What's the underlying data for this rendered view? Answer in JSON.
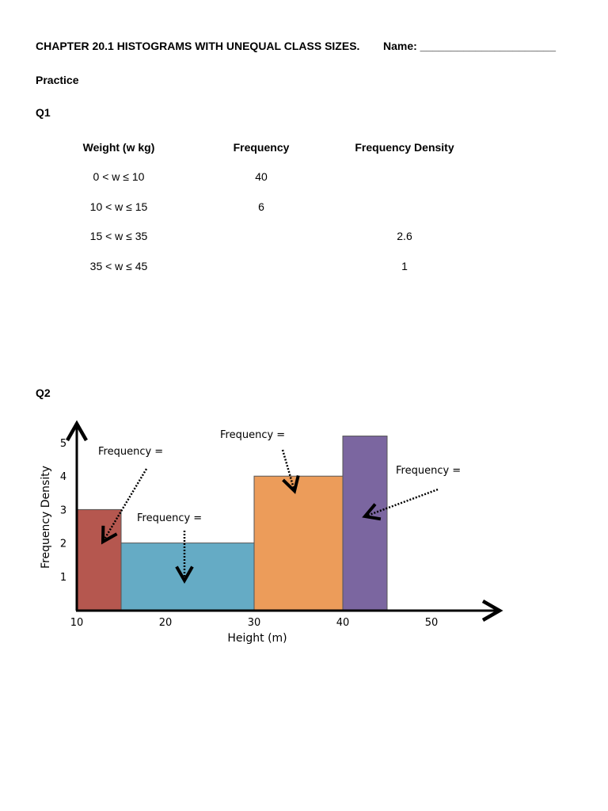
{
  "header": {
    "title": "CHAPTER 20.1 HISTOGRAMS WITH UNEQUAL CLASS SIZES.",
    "name_label": "Name: ______________________"
  },
  "section": "Practice",
  "q1": {
    "label": "Q1",
    "columns": [
      "Weight (w kg)",
      "Frequency",
      "Frequency Density"
    ],
    "rows": [
      [
        "0 < w ≤ 10",
        "40",
        ""
      ],
      [
        "10 < w ≤ 15",
        "6",
        ""
      ],
      [
        "15 < w ≤ 35",
        "",
        "2.6"
      ],
      [
        "35 < w ≤ 45",
        "",
        "1"
      ]
    ]
  },
  "q2": {
    "label": "Q2",
    "annotation": "Frequency ="
  },
  "chart_data": {
    "type": "bar",
    "title": "",
    "xlabel": "Height (m)",
    "ylabel": "Frequency Density",
    "xlim": [
      10,
      55
    ],
    "ylim": [
      0,
      5.5
    ],
    "xticks": [
      "10",
      "20",
      "30",
      "40",
      "50"
    ],
    "yticks": [
      "1",
      "2",
      "3",
      "4",
      "5"
    ],
    "grid": false,
    "bins": [
      {
        "from": 10,
        "to": 15,
        "density": 3,
        "color": "#b5574f"
      },
      {
        "from": 15,
        "to": 30,
        "density": 2,
        "color": "#65abc5"
      },
      {
        "from": 30,
        "to": 40,
        "density": 4,
        "color": "#ec9c5a"
      },
      {
        "from": 40,
        "to": 45,
        "density": 5.2,
        "color": "#7b66a0"
      }
    ],
    "annotations": [
      "Frequency =",
      "Frequency =",
      "Frequency =",
      "Frequency ="
    ]
  }
}
